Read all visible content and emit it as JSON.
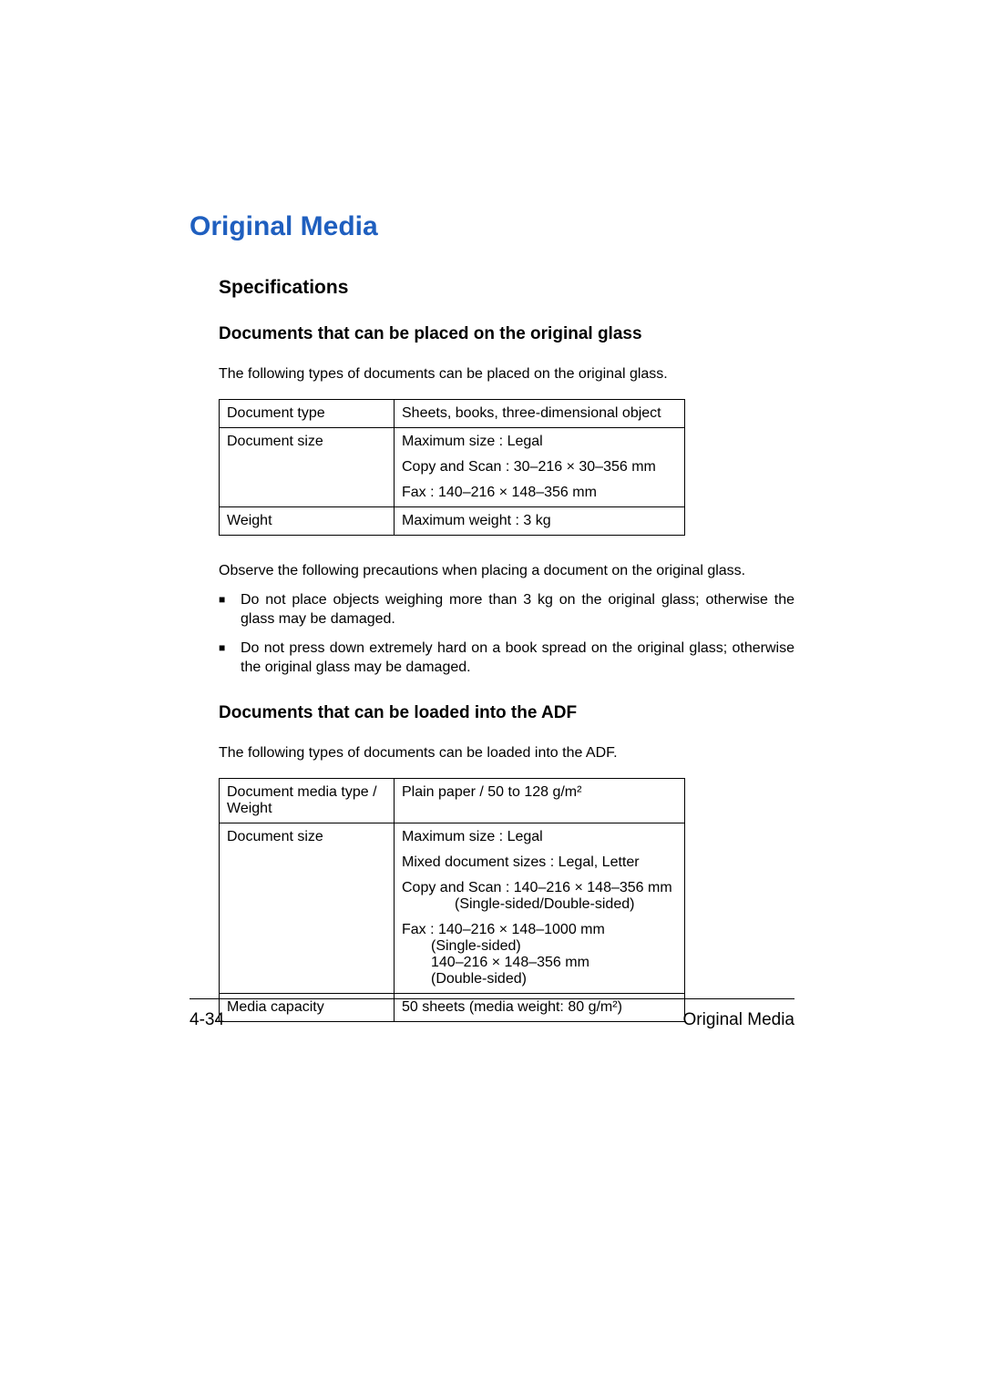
{
  "title": "Original Media",
  "specifications_heading": "Specifications",
  "section1": {
    "heading": "Documents that can be placed on the original glass",
    "intro": "The following types of documents can be placed on the original glass.",
    "rows": {
      "doc_type_label": "Document type",
      "doc_type_value": "Sheets, books, three-dimensional object",
      "doc_size_label": "Document size",
      "doc_size_max": "Maximum size : Legal",
      "doc_size_copyscan": "Copy and Scan : 30–216 × 30–356 mm",
      "doc_size_fax": "Fax : 140–216 × 148–356 mm",
      "weight_label": "Weight",
      "weight_value": "Maximum weight : 3 kg"
    },
    "precautions_intro": "Observe the following precautions when placing a document on the original glass.",
    "bullets": {
      "b1": "Do not place objects weighing more than 3 kg on the original glass; otherwise the glass may be damaged.",
      "b2": "Do not press down extremely hard on a book spread on the original glass; otherwise the original glass may be damaged."
    }
  },
  "section2": {
    "heading": "Documents that can be loaded into the ADF",
    "intro": "The following types of documents can be loaded into the ADF.",
    "rows": {
      "media_type_label": "Document media type / Weight",
      "media_type_value": "Plain paper / 50 to 128 g/m²",
      "doc_size_label": "Document size",
      "doc_size_max": "Maximum size : Legal",
      "doc_size_mixed": "Mixed document sizes : Legal, Letter",
      "doc_size_copyscan_l1": "Copy and Scan : 140–216 × 148–356 mm",
      "doc_size_copyscan_l2": "(Single-sided/Double-sided)",
      "doc_size_fax_l1": "Fax : 140–216 × 148–1000 mm",
      "doc_size_fax_l2": "(Single-sided)",
      "doc_size_fax_l3": "140–216 × 148–356 mm",
      "doc_size_fax_l4": "(Double-sided)",
      "capacity_label": "Media capacity",
      "capacity_value": "50 sheets (media weight: 80 g/m²)"
    }
  },
  "footer": {
    "page_number": "4-34",
    "section_title": "Original Media"
  },
  "colors": {
    "heading_color": "#1f5fbf",
    "text_color": "#000000",
    "border_color": "#000000",
    "background": "#ffffff"
  },
  "typography": {
    "h1_size": 30,
    "h2_size": 21,
    "h3_size": 19,
    "body_size": 16,
    "footer_size": 19
  }
}
